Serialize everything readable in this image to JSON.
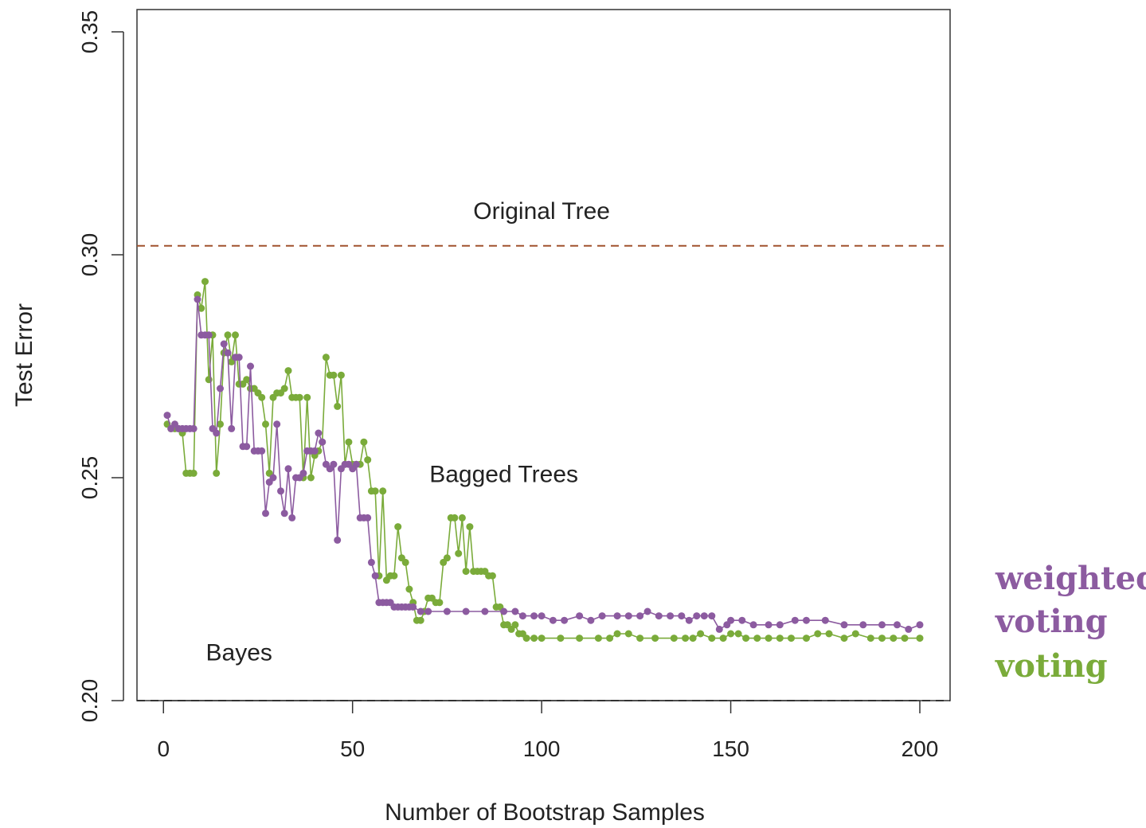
{
  "chart_data": {
    "type": "line",
    "xlabel": "Number of Bootstrap Samples",
    "ylabel": "Test Error",
    "xlim": [
      -7,
      208
    ],
    "ylim": [
      0.2,
      0.355
    ],
    "xticks": [
      0,
      50,
      100,
      150,
      200
    ],
    "xtick_labels": [
      "0",
      "50",
      "100",
      "150",
      "200"
    ],
    "yticks": [
      0.2,
      0.25,
      0.3,
      0.35
    ],
    "ytick_labels": [
      "0.20",
      "0.25",
      "0.30",
      "0.35"
    ],
    "grid": false,
    "legend_position": "right",
    "reference_lines": [
      {
        "label": "Original Tree",
        "y": 0.302,
        "color": "#a0522d",
        "style": "dashed"
      },
      {
        "label": "Bayes",
        "y": 0.2,
        "color": "#333333",
        "style": "dashed"
      }
    ],
    "annotations": [
      {
        "text": "Original Tree",
        "x": 100,
        "y": 0.308
      },
      {
        "text": "Bagged Trees",
        "x": 90,
        "y": 0.249
      },
      {
        "text": "Bayes",
        "x": 20,
        "y": 0.209
      }
    ],
    "series": [
      {
        "name": "voting",
        "color": "#7aab3a",
        "points": [
          [
            1,
            0.262
          ],
          [
            2,
            0.261
          ],
          [
            3,
            0.261
          ],
          [
            4,
            0.261
          ],
          [
            5,
            0.26
          ],
          [
            6,
            0.251
          ],
          [
            7,
            0.251
          ],
          [
            8,
            0.251
          ],
          [
            9,
            0.291
          ],
          [
            10,
            0.288
          ],
          [
            11,
            0.294
          ],
          [
            12,
            0.272
          ],
          [
            13,
            0.282
          ],
          [
            14,
            0.251
          ],
          [
            15,
            0.262
          ],
          [
            16,
            0.278
          ],
          [
            17,
            0.282
          ],
          [
            18,
            0.276
          ],
          [
            19,
            0.282
          ],
          [
            20,
            0.271
          ],
          [
            21,
            0.271
          ],
          [
            22,
            0.272
          ],
          [
            23,
            0.27
          ],
          [
            24,
            0.27
          ],
          [
            25,
            0.269
          ],
          [
            26,
            0.268
          ],
          [
            27,
            0.262
          ],
          [
            28,
            0.251
          ],
          [
            29,
            0.268
          ],
          [
            30,
            0.269
          ],
          [
            31,
            0.269
          ],
          [
            32,
            0.27
          ],
          [
            33,
            0.274
          ],
          [
            34,
            0.268
          ],
          [
            35,
            0.268
          ],
          [
            36,
            0.268
          ],
          [
            37,
            0.25
          ],
          [
            38,
            0.268
          ],
          [
            39,
            0.25
          ],
          [
            40,
            0.255
          ],
          [
            41,
            0.256
          ],
          [
            42,
            0.258
          ],
          [
            43,
            0.277
          ],
          [
            44,
            0.273
          ],
          [
            45,
            0.273
          ],
          [
            46,
            0.266
          ],
          [
            47,
            0.273
          ],
          [
            48,
            0.253
          ],
          [
            49,
            0.258
          ],
          [
            50,
            0.253
          ],
          [
            51,
            0.253
          ],
          [
            52,
            0.253
          ],
          [
            53,
            0.258
          ],
          [
            54,
            0.254
          ],
          [
            55,
            0.247
          ],
          [
            56,
            0.247
          ],
          [
            57,
            0.228
          ],
          [
            58,
            0.247
          ],
          [
            59,
            0.227
          ],
          [
            60,
            0.228
          ],
          [
            61,
            0.228
          ],
          [
            62,
            0.239
          ],
          [
            63,
            0.232
          ],
          [
            64,
            0.231
          ],
          [
            65,
            0.225
          ],
          [
            66,
            0.222
          ],
          [
            67,
            0.218
          ],
          [
            68,
            0.218
          ],
          [
            69,
            0.22
          ],
          [
            70,
            0.223
          ],
          [
            71,
            0.223
          ],
          [
            72,
            0.222
          ],
          [
            73,
            0.222
          ],
          [
            74,
            0.231
          ],
          [
            75,
            0.232
          ],
          [
            76,
            0.241
          ],
          [
            77,
            0.241
          ],
          [
            78,
            0.233
          ],
          [
            79,
            0.241
          ],
          [
            80,
            0.229
          ],
          [
            81,
            0.239
          ],
          [
            82,
            0.229
          ],
          [
            83,
            0.229
          ],
          [
            84,
            0.229
          ],
          [
            85,
            0.229
          ],
          [
            86,
            0.228
          ],
          [
            87,
            0.228
          ],
          [
            88,
            0.221
          ],
          [
            89,
            0.221
          ],
          [
            90,
            0.217
          ],
          [
            91,
            0.217
          ],
          [
            92,
            0.216
          ],
          [
            93,
            0.217
          ],
          [
            94,
            0.215
          ],
          [
            95,
            0.215
          ],
          [
            96,
            0.214
          ],
          [
            98,
            0.214
          ],
          [
            100,
            0.214
          ],
          [
            105,
            0.214
          ],
          [
            110,
            0.214
          ],
          [
            115,
            0.214
          ],
          [
            118,
            0.214
          ],
          [
            120,
            0.215
          ],
          [
            123,
            0.215
          ],
          [
            126,
            0.214
          ],
          [
            130,
            0.214
          ],
          [
            135,
            0.214
          ],
          [
            138,
            0.214
          ],
          [
            140,
            0.214
          ],
          [
            142,
            0.215
          ],
          [
            145,
            0.214
          ],
          [
            148,
            0.214
          ],
          [
            150,
            0.215
          ],
          [
            152,
            0.215
          ],
          [
            154,
            0.214
          ],
          [
            157,
            0.214
          ],
          [
            160,
            0.214
          ],
          [
            163,
            0.214
          ],
          [
            166,
            0.214
          ],
          [
            170,
            0.214
          ],
          [
            173,
            0.215
          ],
          [
            176,
            0.215
          ],
          [
            180,
            0.214
          ],
          [
            183,
            0.215
          ],
          [
            187,
            0.214
          ],
          [
            190,
            0.214
          ],
          [
            193,
            0.214
          ],
          [
            196,
            0.214
          ],
          [
            200,
            0.214
          ]
        ]
      },
      {
        "name": "weighted voting",
        "color": "#8c5ba0",
        "points": [
          [
            1,
            0.264
          ],
          [
            2,
            0.261
          ],
          [
            3,
            0.262
          ],
          [
            4,
            0.261
          ],
          [
            5,
            0.261
          ],
          [
            6,
            0.261
          ],
          [
            7,
            0.261
          ],
          [
            8,
            0.261
          ],
          [
            9,
            0.29
          ],
          [
            10,
            0.282
          ],
          [
            11,
            0.282
          ],
          [
            12,
            0.282
          ],
          [
            13,
            0.261
          ],
          [
            14,
            0.26
          ],
          [
            15,
            0.27
          ],
          [
            16,
            0.28
          ],
          [
            17,
            0.278
          ],
          [
            18,
            0.261
          ],
          [
            19,
            0.277
          ],
          [
            20,
            0.277
          ],
          [
            21,
            0.257
          ],
          [
            22,
            0.257
          ],
          [
            23,
            0.275
          ],
          [
            24,
            0.256
          ],
          [
            25,
            0.256
          ],
          [
            26,
            0.256
          ],
          [
            27,
            0.242
          ],
          [
            28,
            0.249
          ],
          [
            29,
            0.25
          ],
          [
            30,
            0.262
          ],
          [
            31,
            0.247
          ],
          [
            32,
            0.242
          ],
          [
            33,
            0.252
          ],
          [
            34,
            0.241
          ],
          [
            35,
            0.25
          ],
          [
            36,
            0.25
          ],
          [
            37,
            0.251
          ],
          [
            38,
            0.256
          ],
          [
            39,
            0.256
          ],
          [
            40,
            0.256
          ],
          [
            41,
            0.26
          ],
          [
            42,
            0.258
          ],
          [
            43,
            0.253
          ],
          [
            44,
            0.252
          ],
          [
            45,
            0.253
          ],
          [
            46,
            0.236
          ],
          [
            47,
            0.252
          ],
          [
            48,
            0.253
          ],
          [
            49,
            0.253
          ],
          [
            50,
            0.252
          ],
          [
            51,
            0.253
          ],
          [
            52,
            0.241
          ],
          [
            53,
            0.241
          ],
          [
            54,
            0.241
          ],
          [
            55,
            0.231
          ],
          [
            56,
            0.228
          ],
          [
            57,
            0.222
          ],
          [
            58,
            0.222
          ],
          [
            59,
            0.222
          ],
          [
            60,
            0.222
          ],
          [
            61,
            0.221
          ],
          [
            62,
            0.221
          ],
          [
            63,
            0.221
          ],
          [
            64,
            0.221
          ],
          [
            65,
            0.221
          ],
          [
            66,
            0.221
          ],
          [
            68,
            0.22
          ],
          [
            70,
            0.22
          ],
          [
            75,
            0.22
          ],
          [
            80,
            0.22
          ],
          [
            85,
            0.22
          ],
          [
            90,
            0.22
          ],
          [
            93,
            0.22
          ],
          [
            95,
            0.219
          ],
          [
            98,
            0.219
          ],
          [
            100,
            0.219
          ],
          [
            103,
            0.218
          ],
          [
            106,
            0.218
          ],
          [
            110,
            0.219
          ],
          [
            113,
            0.218
          ],
          [
            116,
            0.219
          ],
          [
            120,
            0.219
          ],
          [
            123,
            0.219
          ],
          [
            126,
            0.219
          ],
          [
            128,
            0.22
          ],
          [
            131,
            0.219
          ],
          [
            134,
            0.219
          ],
          [
            137,
            0.219
          ],
          [
            139,
            0.218
          ],
          [
            141,
            0.219
          ],
          [
            143,
            0.219
          ],
          [
            145,
            0.219
          ],
          [
            147,
            0.216
          ],
          [
            149,
            0.217
          ],
          [
            150,
            0.218
          ],
          [
            153,
            0.218
          ],
          [
            156,
            0.217
          ],
          [
            160,
            0.217
          ],
          [
            163,
            0.217
          ],
          [
            167,
            0.218
          ],
          [
            170,
            0.218
          ],
          [
            175,
            0.218
          ],
          [
            180,
            0.217
          ],
          [
            185,
            0.217
          ],
          [
            190,
            0.217
          ],
          [
            194,
            0.217
          ],
          [
            197,
            0.216
          ],
          [
            200,
            0.217
          ]
        ]
      }
    ]
  }
}
